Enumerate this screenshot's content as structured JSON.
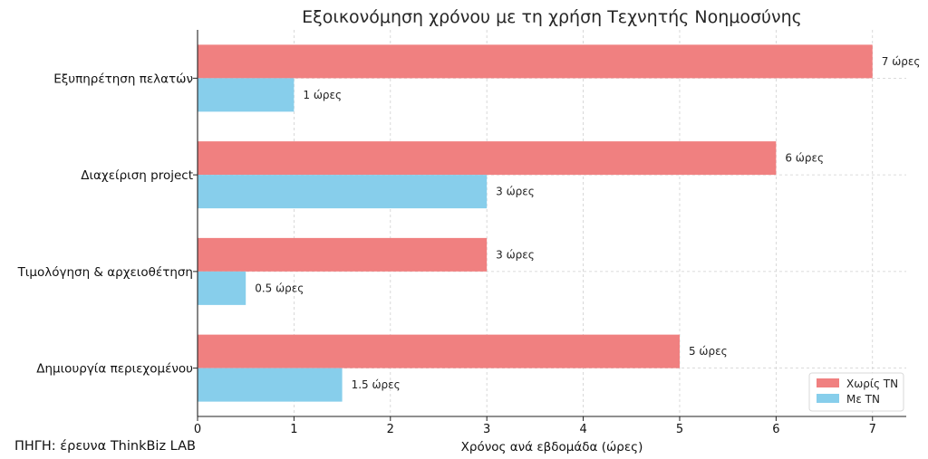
{
  "chart_data": {
    "type": "bar",
    "orientation": "horizontal",
    "title": "Εξοικονόμηση χρόνου με τη χρήση Τεχνητής Νοημοσύνης",
    "xlabel": "Χρόνος ανά εβδομάδα (ώρες)",
    "ylabel": "",
    "categories": [
      "Εξυπηρέτηση πελατών",
      "Διαχείριση project",
      "Τιμολόγηση & αρχειοθέτηση",
      "Δημιουργία περιεχομένου"
    ],
    "series": [
      {
        "name": "Χωρίς ΤΝ",
        "color": "#F08080",
        "values": [
          7,
          6,
          3,
          5
        ],
        "labels": [
          "7 ώρες",
          "6 ώρες",
          "3 ώρες",
          "5 ώρες"
        ]
      },
      {
        "name": "Με ΤΝ",
        "color": "#87CEEB",
        "values": [
          1,
          3,
          0.5,
          1.5
        ],
        "labels": [
          "1 ώρες",
          "3 ώρες",
          "0.5 ώρες",
          "1.5 ώρες"
        ]
      }
    ],
    "xlim": [
      0,
      7.35
    ],
    "xticks": [
      "0",
      "1",
      "2",
      "3",
      "4",
      "5",
      "6",
      "7"
    ],
    "grid": true,
    "legend_position": "bottom-right"
  },
  "source_note": "ΠΗΓΗ: έρευνα ThinkBiz LAB"
}
